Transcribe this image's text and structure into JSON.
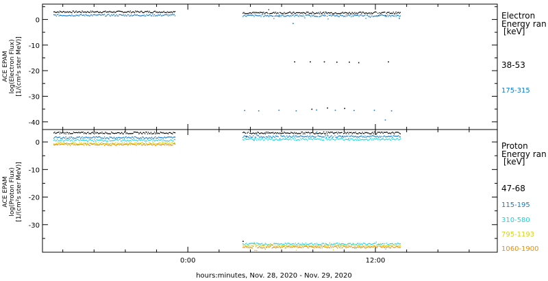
{
  "chart_data": [
    {
      "type": "scatter",
      "panel": "electron",
      "ylabel_lines": [
        "ACE EPAM",
        "log(Electron Flux)",
        "[1/(cm²s ster MeV)]"
      ],
      "yticks": [
        0,
        -10,
        -20,
        -30,
        -40
      ],
      "ylim": [
        -43,
        6
      ],
      "legend_title": [
        "Electron",
        "Energy ran",
        "[keV]"
      ],
      "series": [
        {
          "name": "38-53",
          "color": "#000000",
          "segments": [
            {
              "x": [
                -8.6,
                -0.8
              ],
              "y": 3.0
            },
            {
              "x": [
                3.5,
                13.6
              ],
              "y": 2.6
            }
          ],
          "points": [
            [
              6.8,
              -16.5
            ],
            [
              7.8,
              -16.5
            ],
            [
              8.7,
              -16.5
            ],
            [
              9.5,
              -16.6
            ],
            [
              10.3,
              -16.6
            ],
            [
              10.9,
              -16.8
            ],
            [
              12.8,
              -16.5
            ],
            [
              7.9,
              -35.0
            ],
            [
              8.9,
              -34.5
            ],
            [
              10.0,
              -34.7
            ]
          ]
        },
        {
          "name": "175-315",
          "color": "#0a7ad4",
          "segments": [
            {
              "x": [
                -8.6,
                -0.8
              ],
              "y": 1.7
            },
            {
              "x": [
                3.5,
                13.6
              ],
              "y": 1.5
            }
          ],
          "points": [
            [
              3.6,
              -35.5
            ],
            [
              4.5,
              -35.6
            ],
            [
              5.8,
              -35.4
            ],
            [
              6.9,
              -35.6
            ],
            [
              8.2,
              -35.3
            ],
            [
              9.4,
              -35.4
            ],
            [
              10.6,
              -35.5
            ],
            [
              11.9,
              -35.4
            ],
            [
              13.0,
              -35.6
            ],
            [
              12.6,
              -39.2
            ],
            [
              6.7,
              -1.5
            ],
            [
              13.5,
              0.5
            ]
          ]
        }
      ]
    },
    {
      "type": "scatter",
      "panel": "proton",
      "ylabel_lines": [
        "ACE EPAM",
        "log(Proton Flux)",
        "[1/(cm²s ster MeV)]"
      ],
      "yticks": [
        0,
        -10,
        -20,
        -30
      ],
      "ylim": [
        -40,
        4.5
      ],
      "legend_title": [
        "Proton",
        "Energy ran",
        "[keV]"
      ],
      "series": [
        {
          "name": "47-68",
          "color": "#000000",
          "segments": [
            {
              "x": [
                -8.6,
                -0.8
              ],
              "y": 3.3
            },
            {
              "x": [
                3.5,
                13.6
              ],
              "y": 3.3
            }
          ],
          "points": [
            [
              3.5,
              -36.0
            ]
          ]
        },
        {
          "name": "115-195",
          "color": "#0a7ad4",
          "segments": [
            {
              "x": [
                -8.6,
                -0.8
              ],
              "y": 1.6
            },
            {
              "x": [
                3.5,
                13.6
              ],
              "y": 2.0
            }
          ],
          "points": []
        },
        {
          "name": "310-580",
          "color": "#17d4de",
          "segments": [
            {
              "x": [
                -8.6,
                -0.8
              ],
              "y": 0.6
            },
            {
              "x": [
                3.5,
                13.6
              ],
              "y": 1.0
            },
            {
              "x": [
                3.5,
                13.6
              ],
              "y": -37.0
            }
          ],
          "points": []
        },
        {
          "name": "795-1193",
          "color": "#d4d21a",
          "segments": [
            {
              "x": [
                -8.6,
                -0.8
              ],
              "y": -0.5
            },
            {
              "x": [
                3.5,
                13.6
              ],
              "y": -37.6
            }
          ],
          "points": []
        },
        {
          "name": "1060-1900",
          "color": "#f08a00",
          "segments": [
            {
              "x": [
                -8.6,
                -0.8
              ],
              "y": -0.9
            },
            {
              "x": [
                3.5,
                13.6
              ],
              "y": -38.1
            }
          ],
          "points": []
        }
      ]
    }
  ],
  "x_axis": {
    "range_hours": [
      -9.3,
      19.8
    ],
    "tick_labels": [
      {
        "value": 0,
        "label": "0:00"
      },
      {
        "value": 12,
        "label": "12:00"
      }
    ],
    "minor_ticks": [
      -8,
      -6,
      -4,
      -2,
      0,
      2,
      4,
      6,
      8,
      10,
      12,
      14,
      16,
      18
    ],
    "title": "hours:minutes, Nov. 28, 2020 - Nov. 29, 2020"
  }
}
